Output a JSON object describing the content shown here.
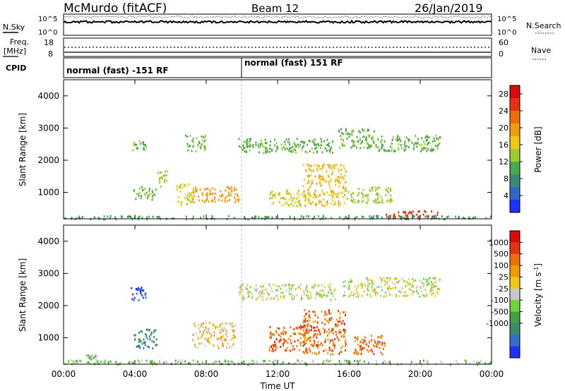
{
  "header": {
    "station": "McMurdo (fitACF)",
    "beam": "Beam 12",
    "date": "26/Jan/2019"
  },
  "top_panels": {
    "nsky": {
      "label": "N.Sky",
      "tick_top": "10^5",
      "tick_bottom": "10^0",
      "right_label": "N.Search"
    },
    "freq": {
      "label_line1": "Freq.",
      "label_line2": "[MHz]",
      "tick_top": "18",
      "tick_bottom": "8",
      "right_tick_top": "60",
      "right_tick_bottom": "0",
      "right_label": "Nave"
    },
    "cpid": {
      "label": "CPID",
      "segments": [
        {
          "text": "normal (fast) -151 RF",
          "start_hour": 0
        },
        {
          "text": "normal (fast) 151 RF",
          "start_hour": 10
        }
      ]
    }
  },
  "chart_data": [
    {
      "type": "heatmap",
      "title": "",
      "xlabel": "",
      "ylabel": "Slant Range [km]",
      "x_unit": "hour UT",
      "xlim": [
        0,
        24
      ],
      "ylim": [
        180,
        4500
      ],
      "y_ticks": [
        1000,
        2000,
        3000,
        4000
      ],
      "colorbar": {
        "label": "Power [dB]",
        "range": [
          0,
          30
        ],
        "ticks": [
          4,
          8,
          12,
          16,
          20,
          24,
          28
        ],
        "colors": [
          "#1e32ff",
          "#3464c8",
          "#3a8a78",
          "#4aa84c",
          "#9ccc30",
          "#f0c814",
          "#f09b0a",
          "#f06e0a",
          "#e63214",
          "#dc0a0a"
        ]
      },
      "echo_regions": [
        {
          "t0": 3.7,
          "t1": 4.6,
          "r0": 2300,
          "r1": 2650,
          "value": 10
        },
        {
          "t0": 3.9,
          "t1": 5.2,
          "r0": 800,
          "r1": 1200,
          "value": 10
        },
        {
          "t0": 5.2,
          "t1": 5.8,
          "r0": 1200,
          "r1": 1700,
          "value": 12
        },
        {
          "t0": 6.3,
          "t1": 7.2,
          "r0": 600,
          "r1": 1300,
          "value": 14
        },
        {
          "t0": 7.2,
          "t1": 9.8,
          "r0": 700,
          "r1": 1200,
          "value": 18
        },
        {
          "t0": 6.8,
          "t1": 8.0,
          "r0": 2300,
          "r1": 2800,
          "value": 10
        },
        {
          "t0": 9.8,
          "t1": 15.2,
          "r0": 2250,
          "r1": 2700,
          "value": 10
        },
        {
          "t0": 13.4,
          "t1": 15.8,
          "r0": 600,
          "r1": 1900,
          "value": 16
        },
        {
          "t0": 11.5,
          "t1": 13.4,
          "r0": 600,
          "r1": 1100,
          "value": 14
        },
        {
          "t0": 15.4,
          "t1": 17.6,
          "r0": 2400,
          "r1": 3000,
          "value": 10
        },
        {
          "t0": 17.5,
          "t1": 21.1,
          "r0": 2300,
          "r1": 2800,
          "value": 10
        },
        {
          "t0": 15.8,
          "t1": 18.4,
          "r0": 700,
          "r1": 1200,
          "value": 12
        },
        {
          "t0": 18.0,
          "t1": 21.0,
          "r0": 190,
          "r1": 450,
          "value": 24
        },
        {
          "t0": 0,
          "t1": 24,
          "r0": 190,
          "r1": 300,
          "value": 8
        }
      ]
    },
    {
      "type": "heatmap",
      "title": "",
      "xlabel": "Time UT",
      "ylabel": "Slant Range [km]",
      "x_unit": "hour UT",
      "xlim": [
        0,
        24
      ],
      "ylim": [
        180,
        4500
      ],
      "x_ticks": [
        "00:00",
        "04:00",
        "08:00",
        "12:00",
        "16:00",
        "20:00",
        "00:00"
      ],
      "y_ticks": [
        1000,
        2000,
        3000,
        4000
      ],
      "colorbar": {
        "label": "Velocity [m s^-1]",
        "ticks": [
          "1000",
          "500",
          "100",
          "25",
          "-25",
          "-100",
          "-500",
          "-1000"
        ],
        "colors": [
          "#1e32ff",
          "#3470c8",
          "#3e8a6a",
          "#42a046",
          "#74d23c",
          "#c8c8c8",
          "#f0c814",
          "#f09b0a",
          "#f06e0a",
          "#e63214",
          "#dc0a0a"
        ]
      },
      "echo_regions": [
        {
          "t0": 3.7,
          "t1": 4.6,
          "r0": 2200,
          "r1": 2650,
          "value": 0
        },
        {
          "t0": 3.9,
          "t1": 5.2,
          "r0": 700,
          "r1": 1300,
          "value": 2
        },
        {
          "t0": 1.2,
          "t1": 1.9,
          "r0": 350,
          "r1": 500,
          "value": 4
        },
        {
          "t0": 7.2,
          "t1": 9.6,
          "r0": 700,
          "r1": 1500,
          "value": 6
        },
        {
          "t0": 9.8,
          "t1": 15.2,
          "r0": 2200,
          "r1": 2700,
          "value": 5
        },
        {
          "t0": 11.5,
          "t1": 13.6,
          "r0": 600,
          "r1": 1400,
          "value": 8
        },
        {
          "t0": 13.4,
          "t1": 15.8,
          "r0": 500,
          "r1": 1900,
          "value": 8
        },
        {
          "t0": 15.6,
          "t1": 21.1,
          "r0": 2300,
          "r1": 2900,
          "value": 5
        },
        {
          "t0": 16.2,
          "t1": 18.0,
          "r0": 500,
          "r1": 1100,
          "value": 8
        },
        {
          "t0": 0,
          "t1": 24,
          "r0": 190,
          "r1": 330,
          "value": 4
        }
      ]
    }
  ]
}
